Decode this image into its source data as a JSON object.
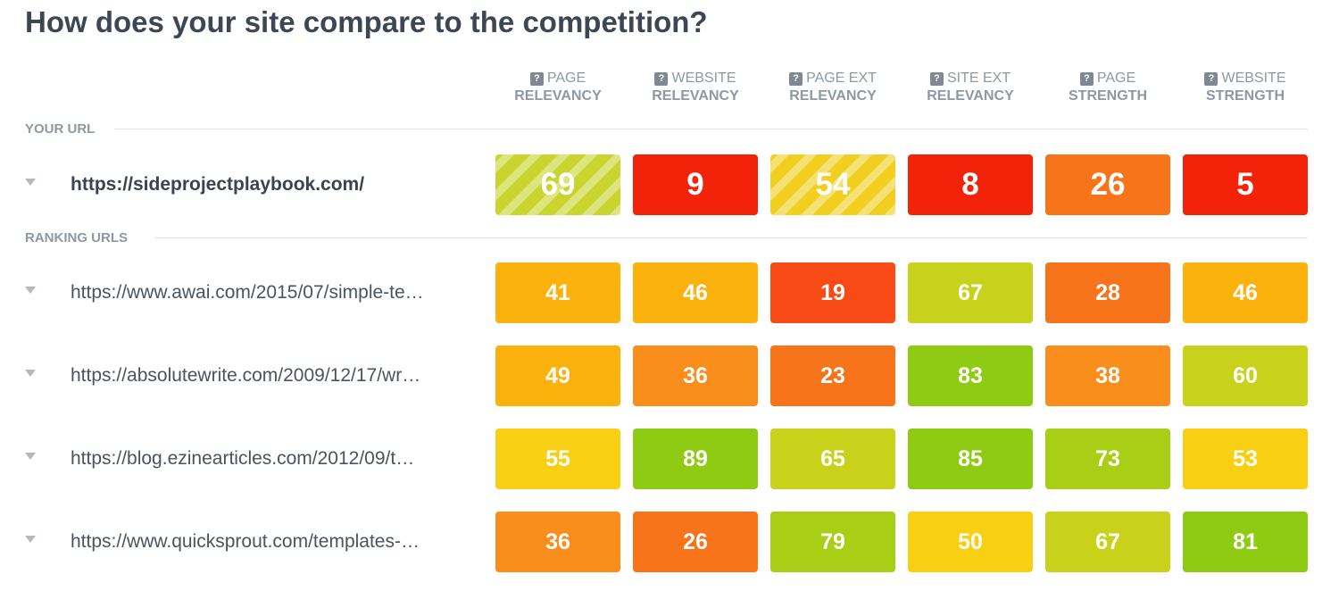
{
  "title": "How does your site compare to the competition?",
  "columns": [
    {
      "l1": "PAGE",
      "l2": "RELEVANCY",
      "help_icon": "?"
    },
    {
      "l1": "WEBSITE",
      "l2": "RELEVANCY",
      "help_icon": "?"
    },
    {
      "l1": "PAGE EXT",
      "l2": "RELEVANCY",
      "help_icon": "?"
    },
    {
      "l1": "SITE EXT",
      "l2": "RELEVANCY",
      "help_icon": "?"
    },
    {
      "l1": "PAGE",
      "l2": "STRENGTH",
      "help_icon": "?"
    },
    {
      "l1": "WEBSITE",
      "l2": "STRENGTH",
      "help_icon": "?"
    }
  ],
  "your_url": {
    "section_label": "YOUR URL",
    "url": "https://sideprojectplaybook.com/",
    "scores": [
      {
        "value": "69",
        "color": "#c9d42e",
        "striped": true
      },
      {
        "value": "9",
        "color": "#f3230a",
        "striped": false
      },
      {
        "value": "54",
        "color": "#f1cf1e",
        "striped": true
      },
      {
        "value": "8",
        "color": "#f3230a",
        "striped": false
      },
      {
        "value": "26",
        "color": "#f8741a",
        "striped": false
      },
      {
        "value": "5",
        "color": "#f3230a",
        "striped": false
      }
    ]
  },
  "ranking": {
    "section_label": "RANKING URLS",
    "rows": [
      {
        "url": "https://www.awai.com/2015/07/simple-te…",
        "scores": [
          {
            "value": "41",
            "color": "#fbb20c"
          },
          {
            "value": "46",
            "color": "#fbb20c"
          },
          {
            "value": "19",
            "color": "#f74a15"
          },
          {
            "value": "67",
            "color": "#c9d21b"
          },
          {
            "value": "28",
            "color": "#f8741a"
          },
          {
            "value": "46",
            "color": "#fbb20c"
          }
        ]
      },
      {
        "url": "https://absolutewrite.com/2009/12/17/wr…",
        "scores": [
          {
            "value": "49",
            "color": "#fbb20c"
          },
          {
            "value": "36",
            "color": "#f98e1c"
          },
          {
            "value": "23",
            "color": "#f8741a"
          },
          {
            "value": "83",
            "color": "#8fcb13"
          },
          {
            "value": "38",
            "color": "#f98e1c"
          },
          {
            "value": "60",
            "color": "#c9d21b"
          }
        ]
      },
      {
        "url": "https://blog.ezinearticles.com/2012/09/t…",
        "scores": [
          {
            "value": "55",
            "color": "#f8cf12"
          },
          {
            "value": "89",
            "color": "#8fcb13"
          },
          {
            "value": "65",
            "color": "#c9d21b"
          },
          {
            "value": "85",
            "color": "#8fcb13"
          },
          {
            "value": "73",
            "color": "#a8ce16"
          },
          {
            "value": "53",
            "color": "#f8cf12"
          }
        ]
      },
      {
        "url": "https://www.quicksprout.com/templates-…",
        "scores": [
          {
            "value": "36",
            "color": "#f98e1c"
          },
          {
            "value": "26",
            "color": "#f8741a"
          },
          {
            "value": "79",
            "color": "#a8ce16"
          },
          {
            "value": "50",
            "color": "#f8cf12"
          },
          {
            "value": "67",
            "color": "#c9d21b"
          },
          {
            "value": "81",
            "color": "#8fcb13"
          }
        ]
      }
    ]
  }
}
